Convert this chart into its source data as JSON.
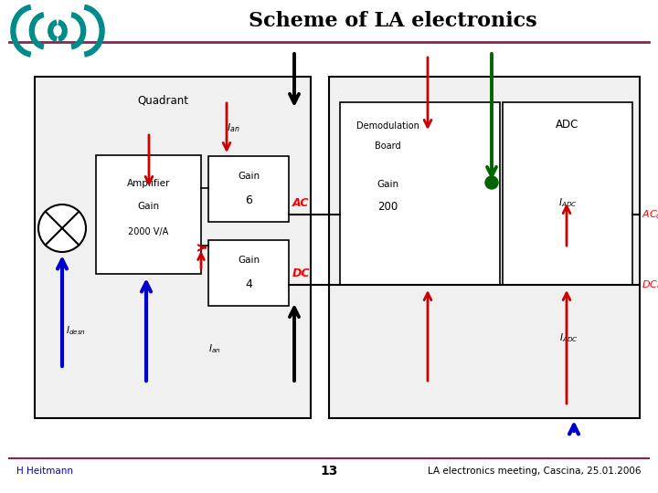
{
  "title": "Scheme of LA electronics",
  "footer_left": "H Heitmann",
  "footer_center": "13",
  "footer_right": "LA electronics meeting, Cascina, 25.01.2006",
  "bg_color": "#ffffff",
  "title_color": "#000000",
  "purple_line_color": "#8B2252",
  "teal_logo_color": "#008B8B",
  "red": "#cc0000",
  "blue": "#0000cc",
  "green": "#006400",
  "black": "#000000"
}
